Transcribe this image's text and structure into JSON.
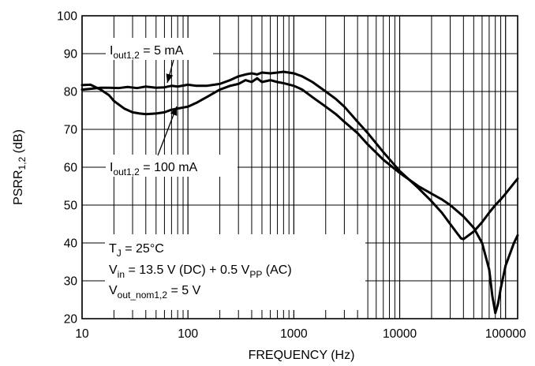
{
  "chart_data": {
    "type": "line",
    "title": "",
    "xlabel": "FREQUENCY (Hz)",
    "ylabel": {
      "main": "PSRR",
      "sub": "1,2",
      "unit": " (dB)"
    },
    "xscale": "log",
    "xlim": [
      10,
      130000
    ],
    "ylim": [
      20,
      100
    ],
    "xticks": [
      10,
      100,
      1000,
      10000,
      100000
    ],
    "xtick_labels": [
      "10",
      "100",
      "1000",
      "10000",
      "100000"
    ],
    "yticks": [
      20,
      30,
      40,
      50,
      60,
      70,
      80,
      90,
      100
    ],
    "ytick_labels": [
      "20",
      "30",
      "40",
      "50",
      "60",
      "70",
      "80",
      "90",
      "100"
    ],
    "grid": true,
    "series": [
      {
        "name": "I_out1,2 = 5 mA",
        "color": "#000000",
        "x": [
          10,
          12,
          15,
          18,
          22,
          27,
          33,
          40,
          50,
          60,
          70,
          80,
          100,
          120,
          150,
          200,
          250,
          300,
          350,
          400,
          450,
          500,
          600,
          700,
          800,
          1000,
          1200,
          1500,
          2000,
          2500,
          3000,
          4000,
          5000,
          7000,
          10000,
          15000,
          20000,
          25000,
          30000,
          35000,
          38000,
          40000,
          50000,
          60000,
          70000,
          80000,
          90000,
          100000,
          130000
        ],
        "y": [
          80.5,
          80.7,
          81,
          81,
          80.9,
          81.2,
          80.9,
          81.3,
          81,
          81.1,
          81.5,
          81.3,
          81.8,
          81.5,
          81.5,
          82,
          83,
          84,
          84.5,
          84.8,
          84.5,
          85,
          84.8,
          85,
          85.2,
          84.8,
          84,
          82.5,
          80,
          78,
          76,
          72,
          69,
          64,
          59,
          54.5,
          51,
          48,
          45,
          42.5,
          41.2,
          41,
          43,
          45.5,
          48,
          50,
          51.5,
          53,
          57
        ]
      },
      {
        "name": "I_out1,2 = 100 mA",
        "color": "#000000",
        "x": [
          10,
          12,
          15,
          18,
          20,
          25,
          30,
          35,
          40,
          50,
          60,
          70,
          80,
          100,
          120,
          150,
          200,
          250,
          300,
          350,
          400,
          450,
          500,
          600,
          700,
          800,
          1000,
          1200,
          1500,
          2000,
          2500,
          3000,
          4000,
          5000,
          7000,
          10000,
          15000,
          20000,
          25000,
          30000,
          40000,
          50000,
          60000,
          70000,
          75000,
          80000,
          85000,
          90000,
          100000,
          120000,
          130000
        ],
        "y": [
          81.7,
          81.8,
          80.5,
          79,
          77.5,
          75.5,
          74.5,
          74.2,
          74,
          74.2,
          74.5,
          75.2,
          75.5,
          76,
          77,
          78.5,
          80.5,
          81.5,
          82,
          83,
          82.5,
          83.5,
          82.5,
          83,
          82.5,
          82.2,
          81.5,
          80.5,
          78.5,
          76,
          74,
          72,
          69,
          66,
          62,
          58.5,
          55,
          53,
          51.5,
          50,
          47,
          44,
          40,
          33,
          26,
          21.5,
          24,
          28,
          34,
          40,
          42
        ]
      }
    ],
    "annotations": [
      {
        "kind": "legend-label",
        "series": 0,
        "main": "I",
        "sub": "out1,2",
        "rest": " = 5 mA"
      },
      {
        "kind": "legend-label",
        "series": 1,
        "main": "I",
        "sub": "out1,2",
        "rest": " = 100 mA"
      },
      {
        "kind": "condition",
        "main": "T",
        "sub": "J",
        "rest": " = 25°C"
      },
      {
        "kind": "condition",
        "main": "V",
        "sub": "in",
        "rest": " = 13.5 V (DC) + 0.5 V",
        "sub2": "PP",
        "rest2": " (AC)"
      },
      {
        "kind": "condition",
        "main": "V",
        "sub": "out_nom1,2",
        "rest": " = 5 V"
      }
    ]
  }
}
